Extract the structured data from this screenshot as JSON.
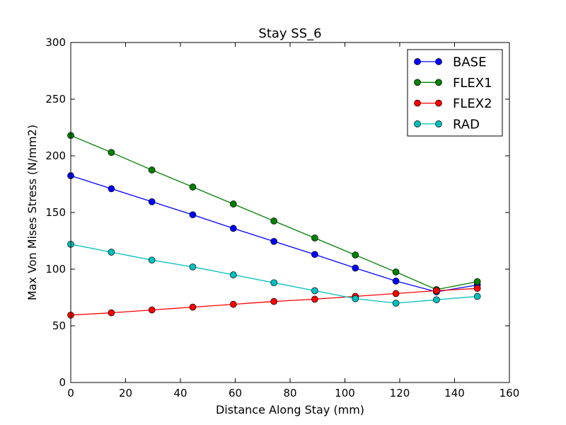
{
  "chart_data": {
    "type": "line",
    "title": "Stay SS_6",
    "xlabel": "Distance Along Stay (mm)",
    "ylabel": "Max Von Mises Stress (N/mm2)",
    "xlim": [
      0,
      160
    ],
    "ylim": [
      0,
      300
    ],
    "xticks": [
      0,
      20,
      40,
      60,
      80,
      100,
      120,
      140,
      160
    ],
    "yticks": [
      0,
      50,
      100,
      150,
      200,
      250,
      300
    ],
    "grid": false,
    "legend_position": "top-right",
    "x": [
      0,
      14.8,
      29.6,
      44.5,
      59.3,
      74.1,
      89.0,
      103.8,
      118.6,
      133.4,
      148.3
    ],
    "series": [
      {
        "name": "BASE",
        "color": "#0000ff",
        "values": [
          182.5,
          171,
          159.5,
          148,
          136,
          124.5,
          113,
          101,
          89.5,
          80,
          86
        ]
      },
      {
        "name": "FLEX1",
        "color": "#008000",
        "values": [
          218,
          203,
          187.5,
          172.5,
          157.5,
          142.5,
          127.5,
          112.5,
          97.5,
          82,
          89
        ]
      },
      {
        "name": "FLEX2",
        "color": "#ff0000",
        "values": [
          59.5,
          61.5,
          64,
          66.5,
          69,
          71.5,
          73.5,
          76,
          78.5,
          81,
          83
        ]
      },
      {
        "name": "RAD",
        "color": "#00bfbf",
        "values": [
          122,
          115,
          108,
          102,
          95,
          88,
          81,
          74,
          70,
          73,
          76
        ]
      }
    ]
  }
}
